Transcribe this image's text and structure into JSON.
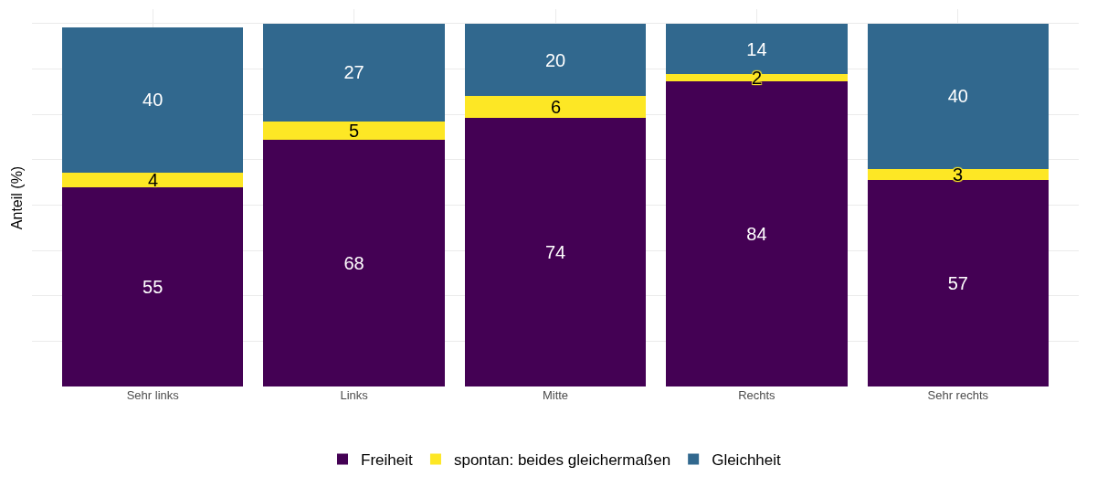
{
  "chart_data": {
    "type": "bar",
    "stacked": true,
    "ylabel": "Anteil (%)",
    "categories": [
      "Sehr links",
      "Links",
      "Mitte",
      "Rechts",
      "Sehr rechts"
    ],
    "series": [
      {
        "name": "Freiheit",
        "color": "#440154",
        "values": [
          55,
          68,
          74,
          84,
          57
        ]
      },
      {
        "name": "spontan: beides gleichermaßen",
        "color": "#fde725",
        "values": [
          4,
          5,
          6,
          2,
          3
        ]
      },
      {
        "name": "Gleichheit",
        "color": "#31688e",
        "values": [
          40,
          27,
          20,
          14,
          40
        ]
      }
    ],
    "grid": true,
    "legend": "bottom",
    "data_labels": true
  }
}
